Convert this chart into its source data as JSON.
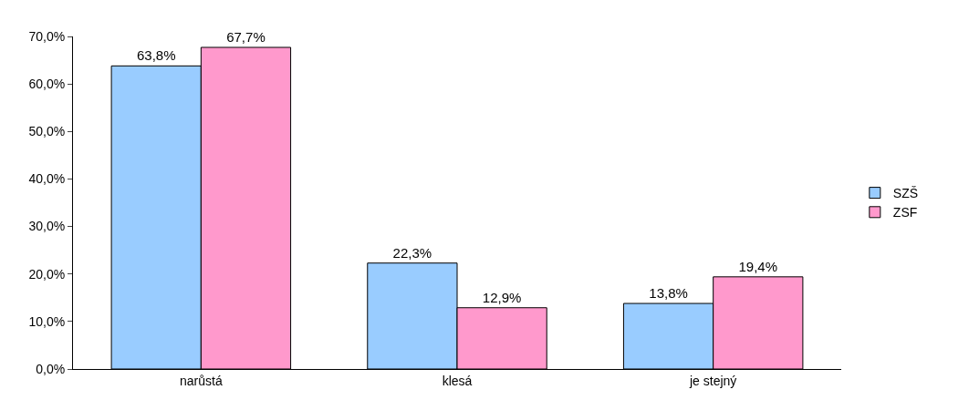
{
  "chart_data": {
    "type": "bar",
    "categories": [
      "narůstá",
      "klesá",
      "je stejný"
    ],
    "series": [
      {
        "name": "SZŠ",
        "color": "#99ccff",
        "values": [
          63.8,
          22.3,
          13.8
        ],
        "value_labels": [
          "63,8%",
          "22,3%",
          "13,8%"
        ]
      },
      {
        "name": "ZSF",
        "color": "#ff99cc",
        "values": [
          67.7,
          12.9,
          19.4
        ],
        "value_labels": [
          "67,7%",
          "12,9%",
          "19,4%"
        ]
      }
    ],
    "ylim": [
      0,
      70
    ],
    "yticks": [
      {
        "value": 0,
        "label": "0,0%"
      },
      {
        "value": 10,
        "label": "10,0%"
      },
      {
        "value": 20,
        "label": "20,0%"
      },
      {
        "value": 30,
        "label": "30,0%"
      },
      {
        "value": 40,
        "label": "40,0%"
      },
      {
        "value": 50,
        "label": "50,0%"
      },
      {
        "value": 60,
        "label": "60,0%"
      },
      {
        "value": 70,
        "label": "70,0%"
      }
    ],
    "legend": "right"
  }
}
